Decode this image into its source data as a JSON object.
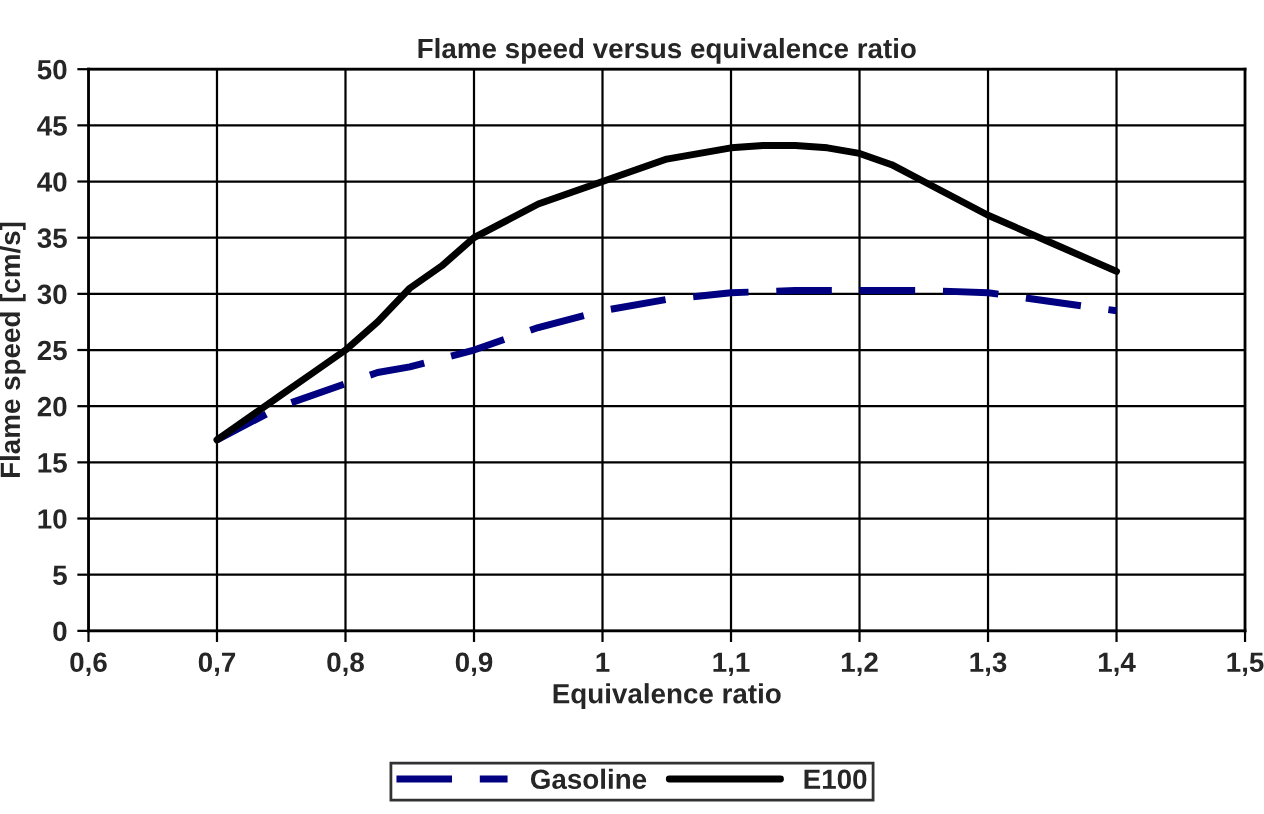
{
  "chart_data": {
    "type": "line",
    "title": "Flame speed versus equivalence ratio",
    "xlabel": "Equivalence ratio",
    "ylabel": "Flame speed [cm/s]",
    "xlim": [
      0.6,
      1.5
    ],
    "xticks": [
      {
        "value": 0.6,
        "label": "0,6"
      },
      {
        "value": 0.7,
        "label": "0,7"
      },
      {
        "value": 0.8,
        "label": "0,8"
      },
      {
        "value": 0.9,
        "label": "0,9"
      },
      1,
      {
        "value": 1.1,
        "label": "1,1"
      },
      {
        "value": 1.2,
        "label": "1,2"
      },
      {
        "value": 1.3,
        "label": "1,3"
      },
      {
        "value": 1.4,
        "label": "1,4"
      },
      {
        "value": 1.5,
        "label": "1,5"
      }
    ],
    "ylim": [
      0,
      50
    ],
    "yticks": [
      0,
      5,
      10,
      15,
      20,
      25,
      30,
      35,
      40,
      45,
      50
    ],
    "grid": true,
    "legend": "bottom",
    "series": [
      {
        "name": "Gasoline",
        "color": "#000080",
        "line_style": "dashed",
        "x": [
          0.7,
          0.75,
          0.8,
          0.825,
          0.85,
          0.9,
          0.95,
          1.0,
          1.05,
          1.1,
          1.15,
          1.2,
          1.25,
          1.3,
          1.35,
          1.4
        ],
        "values": [
          17,
          20,
          22,
          23,
          23.5,
          25,
          27,
          28.5,
          29.5,
          30.1,
          30.3,
          30.3,
          30.3,
          30.1,
          29.3,
          28.5
        ]
      },
      {
        "name": "E100",
        "color": "#000000",
        "line_style": "solid",
        "x": [
          0.7,
          0.725,
          0.75,
          0.775,
          0.8,
          0.825,
          0.85,
          0.875,
          0.9,
          0.925,
          0.95,
          1.0,
          1.05,
          1.1,
          1.125,
          1.15,
          1.175,
          1.2,
          1.225,
          1.25,
          1.3,
          1.35,
          1.4
        ],
        "values": [
          17,
          19,
          21,
          23,
          25,
          27.5,
          30.5,
          32.5,
          35,
          36.5,
          38,
          40,
          42,
          43,
          43.2,
          43.2,
          43,
          42.5,
          41.5,
          40,
          37,
          34.5,
          32
        ]
      }
    ]
  }
}
